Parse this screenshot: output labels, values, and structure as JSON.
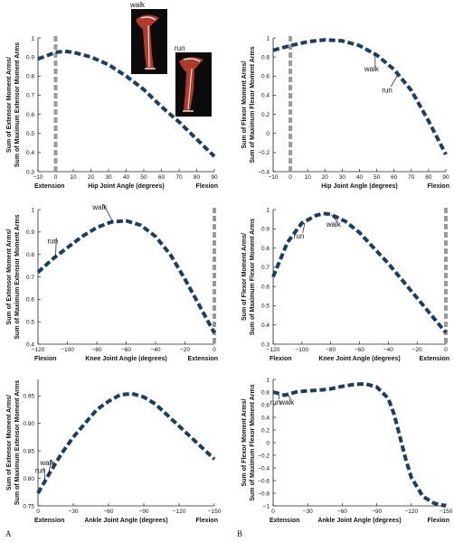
{
  "panel_labels": [
    "A",
    "B"
  ],
  "chart_data": [
    {
      "type": "line",
      "id": "hip-extensor",
      "xlabel_left": "Extension",
      "xlabel": "Hip Joint Angle (degrees)",
      "xlabel_right": "Flexion",
      "ylabel": [
        "Sum of Extensor Moment Arms/",
        "Sum of Maximum Extensor Moment Arms"
      ],
      "xlim": [
        -10,
        90
      ],
      "ylim": [
        0.3,
        1
      ],
      "xticks": [
        -10,
        0,
        10,
        20,
        30,
        40,
        50,
        60,
        70,
        80,
        90
      ],
      "yticks": [
        0.3,
        0.4,
        0.5,
        0.6,
        0.7,
        0.8,
        0.9,
        1
      ],
      "ytick_labels": [
        "0.3",
        "0.4",
        "0.5",
        "0.6",
        "0.7",
        "0.8",
        "0.9",
        "1"
      ],
      "vline_x": 0,
      "x": [
        -10,
        0,
        5,
        10,
        20,
        30,
        40,
        50,
        60,
        70,
        80,
        90
      ],
      "y": [
        0.89,
        0.925,
        0.93,
        0.925,
        0.9,
        0.86,
        0.8,
        0.73,
        0.64,
        0.56,
        0.47,
        0.38
      ],
      "annotations": [
        {
          "text": "walk",
          "x": 12,
          "y": 1.12
        },
        {
          "text": "run",
          "x": 50,
          "y": 0.97
        }
      ],
      "inset_images": [
        {
          "label": "walk"
        },
        {
          "label": "run"
        }
      ]
    },
    {
      "type": "line",
      "id": "hip-flexor",
      "xlabel_left": "",
      "xlabel": "Hip Joint Angle (degrees)",
      "xlabel_right": "Flexion",
      "ylabel": [
        "Sum of Flexor Moment Arms/",
        "Sum of Maximum Flexor Moment Arms"
      ],
      "xlim": [
        -10,
        90
      ],
      "ylim": [
        -0.4,
        1
      ],
      "xticks": [
        -10,
        0,
        10,
        20,
        30,
        40,
        50,
        60,
        70,
        80,
        90
      ],
      "yticks": [
        -0.4,
        -0.2,
        0,
        0.2,
        0.4,
        0.6,
        0.8,
        1
      ],
      "ytick_labels": [
        "−0.4",
        "−0.2",
        "0",
        "0.2",
        "0.4",
        "0.6",
        "0.8",
        "1"
      ],
      "vline_x": 0,
      "x": [
        -10,
        0,
        10,
        20,
        30,
        40,
        50,
        60,
        70,
        80,
        90
      ],
      "y": [
        0.87,
        0.92,
        0.96,
        0.98,
        0.97,
        0.92,
        0.82,
        0.67,
        0.45,
        0.13,
        -0.22
      ],
      "annotations": [
        {
          "text": "walk",
          "x": 49,
          "y": 0.84,
          "tx": 47,
          "ty": 0.65
        },
        {
          "text": "run",
          "x": 62,
          "y": 0.61,
          "tx": 56,
          "ty": 0.43
        }
      ]
    },
    {
      "type": "line",
      "id": "knee-extensor",
      "xlabel_left": "Flexion",
      "xlabel": "Knee Joint Angle (degrees)",
      "xlabel_right": "Extension",
      "ylabel": [
        "Sum of Extensor Moment Arms/",
        "Sum of Maximum Extensor Moment Arms"
      ],
      "xlim": [
        -120,
        0
      ],
      "ylim": [
        0.4,
        1
      ],
      "xticks": [
        -120,
        -100,
        -80,
        -60,
        -40,
        -20,
        0
      ],
      "yticks": [
        0.4,
        0.5,
        0.6,
        0.7,
        0.8,
        0.9,
        1
      ],
      "ytick_labels": [
        "0.4",
        "0.5",
        "0.6",
        "0.7",
        "0.8",
        "0.9",
        "1"
      ],
      "vline_x": 0,
      "x": [
        -120,
        -110,
        -100,
        -90,
        -80,
        -70,
        -60,
        -50,
        -40,
        -30,
        -20,
        -10,
        0
      ],
      "y": [
        0.72,
        0.78,
        0.83,
        0.88,
        0.92,
        0.945,
        0.95,
        0.93,
        0.88,
        0.8,
        0.69,
        0.57,
        0.45
      ],
      "annotations": [
        {
          "text": "walk",
          "x": -69,
          "y": 0.945,
          "tx": -78,
          "ty": 1.0
        },
        {
          "text": "run",
          "x": -108,
          "y": 0.79,
          "tx": -110,
          "ty": 0.85
        }
      ]
    },
    {
      "type": "line",
      "id": "knee-flexor",
      "xlabel_left": "Flexion",
      "xlabel": "Knee Joint Angle (degrees)",
      "xlabel_right": "Extension",
      "ylabel": [
        "Sum of Flexor Moment Arms/",
        "Sum of Maximum Flexor Moment Arms"
      ],
      "xlim": [
        -120,
        0
      ],
      "ylim": [
        0.3,
        1
      ],
      "xticks": [
        -120,
        -100,
        -80,
        -60,
        -40,
        -20,
        0
      ],
      "yticks": [
        0.3,
        0.4,
        0.5,
        0.6,
        0.7,
        0.8,
        0.9,
        1
      ],
      "ytick_labels": [
        "0.3",
        "0.4",
        "0.5",
        "0.6",
        "0.7",
        "0.8",
        "0.9",
        "1"
      ],
      "vline_x": 0,
      "x": [
        -120,
        -110,
        -100,
        -90,
        -85,
        -80,
        -70,
        -60,
        -50,
        -40,
        -30,
        -20,
        -10,
        0
      ],
      "y": [
        0.65,
        0.83,
        0.93,
        0.97,
        0.98,
        0.975,
        0.94,
        0.88,
        0.8,
        0.72,
        0.63,
        0.54,
        0.45,
        0.36
      ],
      "annotations": [
        {
          "text": "walk",
          "x": -80,
          "y": 0.975,
          "tx": -78,
          "ty": 0.91
        },
        {
          "text": "run",
          "x": -98,
          "y": 0.93,
          "tx": -102,
          "ty": 0.85
        }
      ]
    },
    {
      "type": "line",
      "id": "ankle-extensor",
      "xlabel_left": "Extension",
      "xlabel": "Ankle Joint Angle (degrees)",
      "xlabel_right": "Flexion",
      "ylabel": [
        "Sum of Extensor Moment Arms/",
        "Sum of Maximum Extensor Moment Arms"
      ],
      "xlim": [
        0,
        -150
      ],
      "ylim": [
        0.75,
        0.98
      ],
      "xticks": [
        0,
        -30,
        -60,
        -90,
        -120,
        -150
      ],
      "yticks": [
        0.75,
        0.8,
        0.85,
        0.9,
        0.95
      ],
      "ytick_labels": [
        "0.75",
        "0.80",
        "0.85",
        "0.90",
        "0.95"
      ],
      "x": [
        0,
        -10,
        -20,
        -30,
        -40,
        -50,
        -60,
        -70,
        -80,
        -90,
        -100,
        -110,
        -120,
        -130,
        -140,
        -150
      ],
      "y": [
        0.773,
        0.81,
        0.845,
        0.875,
        0.9,
        0.925,
        0.94,
        0.952,
        0.954,
        0.948,
        0.935,
        0.915,
        0.895,
        0.875,
        0.855,
        0.835
      ],
      "annotations": [
        {
          "text": "walk",
          "x": -9,
          "y": 0.806,
          "tx": -8,
          "ty": 0.824
        },
        {
          "text": "run",
          "x": -6,
          "y": 0.797,
          "tx": -2,
          "ty": 0.81
        }
      ]
    },
    {
      "type": "line",
      "id": "ankle-flexor",
      "xlabel_left": "Extension",
      "xlabel": "Ankle Joint Angle (degrees)",
      "xlabel_right": "Flexion",
      "ylabel": [
        "Sum of Flexor Moment Arms/",
        "Sum of Maximum Flexor Moment Arms"
      ],
      "xlim": [
        0,
        -150
      ],
      "ylim": [
        -1,
        1
      ],
      "xticks": [
        0,
        -30,
        -60,
        -90,
        -120,
        -150
      ],
      "yticks": [
        -1,
        -0.8,
        -0.6,
        -0.4,
        -0.2,
        0,
        0.2,
        0.4,
        0.6,
        0.8,
        1
      ],
      "ytick_labels": [
        "−1",
        "−0.8",
        "−0.6",
        "−0.4",
        "−0.2",
        "0",
        "0.2",
        "0.4",
        "0.6",
        "0.8",
        "1"
      ],
      "x": [
        0,
        -10,
        -20,
        -30,
        -40,
        -50,
        -60,
        -70,
        -80,
        -90,
        -100,
        -105,
        -110,
        -115,
        -120,
        -130,
        -140,
        -150
      ],
      "y": [
        0.8,
        0.75,
        0.8,
        0.82,
        0.83,
        0.85,
        0.89,
        0.92,
        0.93,
        0.88,
        0.7,
        0.45,
        0.1,
        -0.25,
        -0.55,
        -0.85,
        -0.96,
        -1.0
      ],
      "annotations": [
        {
          "text": "run",
          "x": -5,
          "y": 0.76,
          "tx": -2,
          "ty": 0.6
        },
        {
          "text": "walk",
          "x": -13,
          "y": 0.76,
          "tx": -12,
          "ty": 0.6
        }
      ]
    }
  ]
}
